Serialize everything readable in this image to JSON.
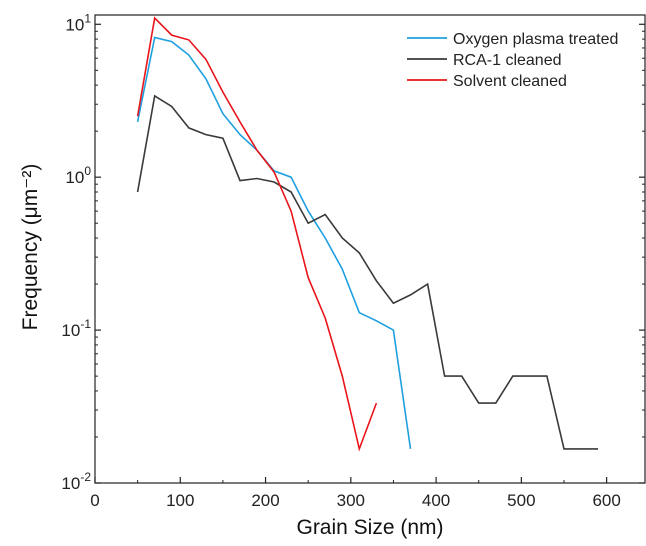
{
  "chart_data": {
    "type": "line",
    "xlabel": "Grain Size (nm)",
    "ylabel": "Frequency (μm⁻²)",
    "xlim": [
      0,
      645
    ],
    "ylim": [
      0.01,
      11.5
    ],
    "yscale": "log",
    "grid": false,
    "legend_position": "top-right",
    "x_ticks": [
      0,
      100,
      200,
      300,
      400,
      500,
      600
    ],
    "x_tick_labels": [
      "0",
      "100",
      "200",
      "300",
      "400",
      "500",
      "600"
    ],
    "y_ticks": [
      0.01,
      0.1,
      1,
      10
    ],
    "y_tick_labels": [
      {
        "base": "10",
        "exp": "-2"
      },
      {
        "base": "10",
        "exp": "-1"
      },
      {
        "base": "10",
        "exp": "0"
      },
      {
        "base": "10",
        "exp": "1"
      }
    ],
    "series": [
      {
        "name": "Oxygen plasma treated",
        "color": "#1ea0e0",
        "points": [
          [
            50,
            2.3
          ],
          [
            70,
            8.2
          ],
          [
            90,
            7.7
          ],
          [
            110,
            6.3
          ],
          [
            130,
            4.4
          ],
          [
            150,
            2.6
          ],
          [
            170,
            1.9
          ],
          [
            190,
            1.5
          ],
          [
            210,
            1.1
          ],
          [
            230,
            1.0
          ],
          [
            250,
            0.6
          ],
          [
            270,
            0.4
          ],
          [
            290,
            0.25
          ],
          [
            310,
            0.13
          ],
          [
            330,
            0.115
          ],
          [
            350,
            0.1
          ],
          [
            370,
            0.0167
          ]
        ]
      },
      {
        "name": "RCA-1 cleaned",
        "color": "#3a3a3a",
        "points": [
          [
            50,
            0.8
          ],
          [
            70,
            3.4
          ],
          [
            90,
            2.9
          ],
          [
            110,
            2.1
          ],
          [
            130,
            1.9
          ],
          [
            150,
            1.8
          ],
          [
            170,
            0.95
          ],
          [
            190,
            0.98
          ],
          [
            210,
            0.93
          ],
          [
            230,
            0.8
          ],
          [
            250,
            0.5
          ],
          [
            270,
            0.57
          ],
          [
            290,
            0.4
          ],
          [
            310,
            0.32
          ],
          [
            330,
            0.21
          ],
          [
            350,
            0.15
          ],
          [
            370,
            0.17
          ],
          [
            390,
            0.2
          ],
          [
            410,
            0.05
          ],
          [
            430,
            0.05
          ],
          [
            450,
            0.0333
          ],
          [
            470,
            0.0333
          ],
          [
            490,
            0.05
          ],
          [
            510,
            0.05
          ],
          [
            530,
            0.05
          ],
          [
            550,
            0.0167
          ],
          [
            570,
            0.0167
          ],
          [
            590,
            0.0167
          ]
        ]
      },
      {
        "name": "Solvent cleaned",
        "color": "#e8141a",
        "points": [
          [
            50,
            2.5
          ],
          [
            70,
            11.0
          ],
          [
            90,
            8.5
          ],
          [
            110,
            7.9
          ],
          [
            130,
            5.9
          ],
          [
            150,
            3.6
          ],
          [
            170,
            2.3
          ],
          [
            190,
            1.5
          ],
          [
            210,
            1.08
          ],
          [
            230,
            0.6
          ],
          [
            250,
            0.22
          ],
          [
            270,
            0.12
          ],
          [
            290,
            0.05
          ],
          [
            310,
            0.0167
          ],
          [
            330,
            0.0333
          ]
        ]
      }
    ]
  }
}
